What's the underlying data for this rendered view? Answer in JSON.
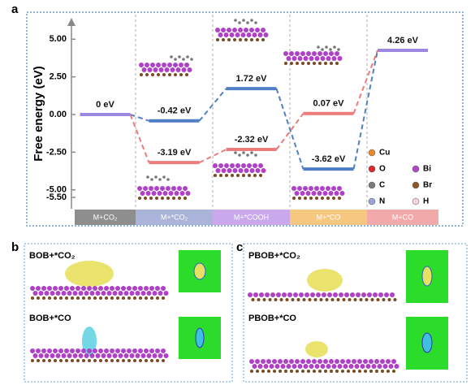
{
  "chart_data": {
    "type": "energy-levels",
    "panel_label": "a",
    "ylabel": "Free energy (eV)",
    "categories": [
      "M+CO₂",
      "M+*CO₂",
      "M+*COOH",
      "M+*CO",
      "M+CO"
    ],
    "category_colors": [
      "#8e8e8e",
      "#aab4da",
      "#c9a9ec",
      "#f6c77e",
      "#f2a9a9"
    ],
    "end_color": "#9b86e0",
    "series": [
      {
        "color": "#4f7fc4",
        "values": [
          0,
          -0.42,
          1.72,
          -3.62,
          4.26
        ],
        "value_labels": [
          "0 eV",
          "-0.42 eV",
          "1.72 eV",
          "-3.62 eV",
          "4.26 eV"
        ]
      },
      {
        "color": "#ec7b7b",
        "values": [
          0,
          -3.19,
          -2.32,
          0.07,
          4.26
        ],
        "value_labels": [
          null,
          "-3.19 eV",
          "-2.32 eV",
          "0.07 eV",
          null
        ]
      }
    ],
    "ylim": [
      -6.2,
      6.2
    ],
    "yticks": [
      {
        "value": 5,
        "label": "5.00"
      },
      {
        "value": 2.5,
        "label": "2.50"
      },
      {
        "value": 0,
        "label": "0.00"
      },
      {
        "value": -2.5,
        "label": "-2.50"
      },
      {
        "value": -5,
        "label": "-5.00"
      },
      {
        "value": -5.5,
        "label": "-5.50"
      }
    ],
    "element_legend": [
      {
        "label": "Cu",
        "color": "#e8892c"
      },
      {
        "label": "O",
        "color": "#e0282a"
      },
      {
        "label": "Bi",
        "color": "#b045c8"
      },
      {
        "label": "C",
        "color": "#7a7a7a"
      },
      {
        "label": "Br",
        "color": "#8a5a2a"
      },
      {
        "label": "N",
        "color": "#9aa0d8"
      },
      {
        "label": "H",
        "color": "#f4d0d8"
      }
    ]
  },
  "panel_b": {
    "label": "b",
    "captions": [
      "BOB+*CO₂",
      "BOB+*CO"
    ]
  },
  "panel_c": {
    "label": "c",
    "captions": [
      "PBOB+*CO₂",
      "PBOB+*CO"
    ]
  }
}
